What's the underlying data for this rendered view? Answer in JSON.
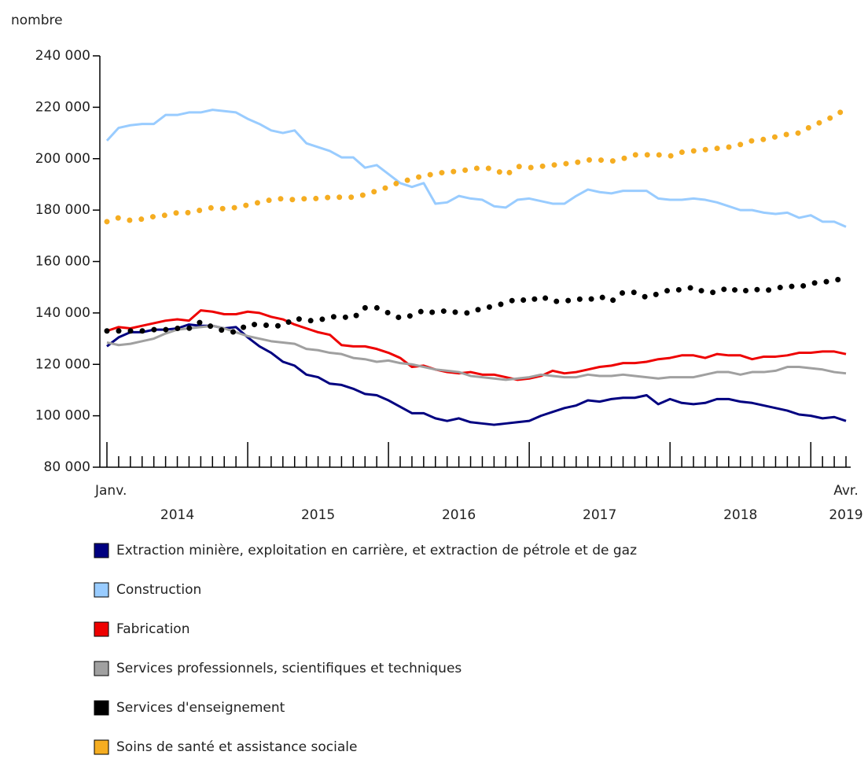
{
  "chart_data": {
    "type": "line",
    "ylabel": "nombre",
    "categories": [
      "Janv.",
      null,
      null,
      null,
      null,
      null,
      null,
      null,
      null,
      null,
      null,
      null,
      null,
      null,
      null,
      null,
      null,
      null,
      null,
      null,
      null,
      null,
      null,
      null,
      null,
      null,
      null,
      null,
      null,
      null,
      null,
      null,
      null,
      null,
      null,
      null,
      null,
      null,
      null,
      null,
      null,
      null,
      null,
      null,
      null,
      null,
      null,
      null,
      null,
      null,
      null,
      null,
      null,
      null,
      null,
      null,
      null,
      null,
      null,
      null,
      null,
      null,
      null,
      "Avr."
    ],
    "x_groups": [
      "2014",
      "2015",
      "2016",
      "2017",
      "2018",
      "2019"
    ],
    "ylim": [
      80000,
      240000
    ],
    "yticks": [
      {
        "value": 80000,
        "label": "80 000"
      },
      {
        "value": 100000,
        "label": "100 000"
      },
      {
        "value": 120000,
        "label": "120 000"
      },
      {
        "value": 140000,
        "label": "140 000"
      },
      {
        "value": 160000,
        "label": "160 000"
      },
      {
        "value": 180000,
        "label": "180 000"
      },
      {
        "value": 200000,
        "label": "200 000"
      },
      {
        "value": 220000,
        "label": "220 000"
      },
      {
        "value": 240000,
        "label": "240 000"
      }
    ],
    "series": [
      {
        "name": "Extraction minière, exploitation en carrière, et extraction de pétrole et de gaz",
        "color": "#000080",
        "style": "solid",
        "values": [
          127000,
          130500,
          132500,
          132500,
          133500,
          133500,
          134000,
          135500,
          135000,
          135000,
          134000,
          134500,
          130500,
          127000,
          124500,
          121000,
          119500,
          116000,
          115000,
          112500,
          112000,
          110500,
          108500,
          108000,
          106000,
          103500,
          101000,
          101000,
          99000,
          98000,
          99000,
          97500,
          97000,
          96500,
          97000,
          97500,
          98000,
          100000,
          101500,
          103000,
          104000,
          106000,
          105500,
          106500,
          107000,
          107000,
          108000,
          104500,
          106500,
          105000,
          104500,
          105000,
          106500,
          106500,
          105500,
          105000,
          104000,
          103000,
          102000,
          100500,
          100000,
          99000,
          99500,
          98000
        ]
      },
      {
        "name": "Construction",
        "color": "#99ccff",
        "style": "solid",
        "values": [
          207000,
          212000,
          213000,
          213500,
          213500,
          217000,
          217000,
          218000,
          218000,
          219000,
          218500,
          218000,
          215500,
          213500,
          211000,
          210000,
          211000,
          206000,
          204500,
          203000,
          200500,
          200500,
          196500,
          197500,
          194000,
          190500,
          189000,
          190500,
          182500,
          183000,
          185500,
          184500,
          184000,
          181500,
          181000,
          184000,
          184500,
          183500,
          182500,
          182500,
          185500,
          188000,
          187000,
          186500,
          187500,
          187500,
          187500,
          184500,
          184000,
          184000,
          184500,
          184000,
          183000,
          181500,
          180000,
          180000,
          179000,
          178500,
          179000,
          177000,
          178000,
          175500,
          175500,
          173500
        ]
      },
      {
        "name": "Fabrication",
        "color": "#ee0000",
        "style": "solid",
        "values": [
          133000,
          134500,
          134000,
          135000,
          136000,
          137000,
          137500,
          137000,
          141000,
          140500,
          139500,
          139500,
          140500,
          140000,
          138500,
          137500,
          135500,
          134000,
          132500,
          131500,
          127500,
          127000,
          127000,
          126000,
          124500,
          122500,
          119000,
          119500,
          118000,
          117000,
          116500,
          117000,
          116000,
          116000,
          115000,
          114000,
          114500,
          115500,
          117500,
          116500,
          117000,
          118000,
          119000,
          119500,
          120500,
          120500,
          121000,
          122000,
          122500,
          123500,
          123500,
          122500,
          124000,
          123500,
          123500,
          122000,
          123000,
          123000,
          123500,
          124500,
          124500,
          125000,
          125000,
          124000
        ]
      },
      {
        "name": "Services professionnels, scientifiques et techniques",
        "color": "#a0a0a0",
        "style": "solid",
        "values": [
          128500,
          127500,
          128000,
          129000,
          130000,
          132000,
          133500,
          134000,
          134500,
          135000,
          134000,
          132500,
          131000,
          130000,
          129000,
          128500,
          128000,
          126000,
          125500,
          124500,
          124000,
          122500,
          122000,
          121000,
          121500,
          120500,
          120000,
          119000,
          118000,
          117500,
          117000,
          115500,
          115000,
          114500,
          114000,
          114500,
          115000,
          116000,
          115500,
          115000,
          115000,
          116000,
          115500,
          115500,
          116000,
          115500,
          115000,
          114500,
          115000,
          115000,
          115000,
          116000,
          117000,
          117000,
          116000,
          117000,
          117000,
          117500,
          119000,
          119000,
          118500,
          118000,
          117000,
          116500
        ]
      },
      {
        "name": "Services d'enseignement",
        "color": "#000000",
        "style": "dotted",
        "values": [
          133000,
          133000,
          133000,
          133000,
          133500,
          133500,
          134000,
          134000,
          136500,
          134500,
          133000,
          132500,
          135500,
          135500,
          135000,
          135000,
          138000,
          137000,
          137000,
          138500,
          138500,
          138000,
          142000,
          142000,
          140000,
          138000,
          139000,
          141000,
          140000,
          141000,
          140000,
          140000,
          142000,
          142500,
          144000,
          145500,
          144500,
          146500,
          144500,
          144500,
          145500,
          145000,
          146500,
          144500,
          148000,
          148000,
          146000,
          147500,
          149000,
          149000,
          150000,
          148000,
          148000,
          150000,
          148000,
          149500,
          148500,
          149500,
          150500,
          150000,
          151500,
          152000,
          152500,
          154000
        ]
      },
      {
        "name": "Soins de santé et assistance sociale",
        "color": "#f5ad21",
        "style": "dotted",
        "values": [
          175500,
          177000,
          176000,
          176500,
          177500,
          178000,
          179000,
          179000,
          180000,
          181000,
          180500,
          181000,
          182000,
          183000,
          184000,
          184500,
          184000,
          184500,
          184500,
          185000,
          185000,
          185000,
          186000,
          187500,
          189000,
          191000,
          192000,
          193500,
          194000,
          195000,
          195000,
          196000,
          196500,
          196000,
          193500,
          197000,
          196500,
          197000,
          197500,
          198000,
          198500,
          199500,
          199500,
          199000,
          200000,
          201500,
          201500,
          201500,
          201000,
          202500,
          203000,
          203500,
          204000,
          204500,
          205500,
          207000,
          207500,
          208500,
          209500,
          210000,
          212500,
          214500,
          216500,
          219500
        ]
      }
    ]
  }
}
